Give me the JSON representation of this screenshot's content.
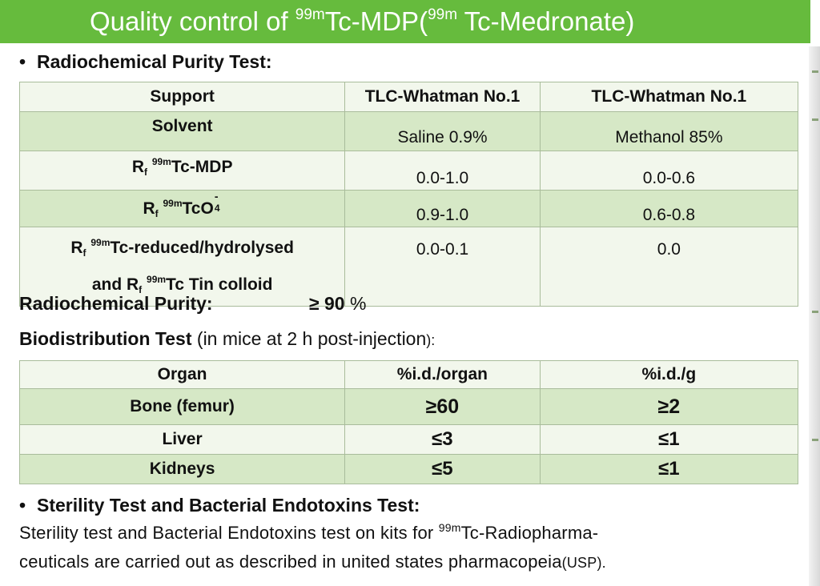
{
  "title": {
    "prefix": "Quality control of ",
    "sup1": "99m",
    "mid": "Tc-MDP(",
    "sup2": "99m",
    "suffix": " Tc-Medronate)"
  },
  "radiochemical": {
    "heading": "Radiochemical Purity Test:",
    "table": {
      "header": {
        "label": "Support",
        "col1": "TLC-Whatman No.1",
        "col2": "TLC-Whatman No.1"
      },
      "solvent": {
        "label": "Solvent",
        "col1": "Saline 0.9%",
        "col2": "Methanol 85%"
      },
      "rf_mdp": {
        "rf": "R",
        "f": "f",
        "sup": "99m",
        "name": "Tc-MDP",
        "col1": "0.0-1.0",
        "col2": "0.0-0.6"
      },
      "rf_tco4": {
        "rf": "R",
        "f": "f",
        "sup": "99m",
        "name": "TcO",
        "ion_sub": "4",
        "ion_charge": "-",
        "col1": "0.9-1.0",
        "col2": "0.6-0.8"
      },
      "rf_reduced": {
        "rf": "R",
        "f": "f",
        "sup": "99m",
        "name": "Tc-reduced/hydrolysed",
        "and": "and R",
        "f2": "f",
        "sup2": "99m",
        "name2": "Tc Tin colloid",
        "col1": "0.0-0.1",
        "col2": "0.0"
      }
    },
    "purity_label": "Radiochemical Purity:",
    "purity_value": "≥ 90",
    "purity_unit": " %"
  },
  "biodistribution": {
    "heading": "Biodistribution Test",
    "heading_note": " (in mice at 2 h post-injection",
    "heading_end": "):",
    "columns": [
      "Organ",
      "%i.d./organ",
      "%i.d./g"
    ],
    "rows": [
      {
        "organ": "Bone (femur)",
        "organ_pct": "≥60",
        "g_pct": "≥2"
      },
      {
        "organ": "Liver",
        "organ_pct": "≤3",
        "g_pct": "≤1"
      },
      {
        "organ": "Kidneys",
        "organ_pct": "≤5",
        "g_pct": "≤1"
      }
    ]
  },
  "sterility": {
    "heading": "Sterility Test and Bacterial Endotoxins Test:",
    "line1_text": "Sterility test and Bacterial Endotoxins test on kits for ",
    "line1_sup": "99m",
    "line1_end": "Tc-Radiopharma-",
    "line2_text": "ceuticals are carried out as described in united states pharmacopeia",
    "line2_paren": "(USP)."
  },
  "bullet": "•"
}
